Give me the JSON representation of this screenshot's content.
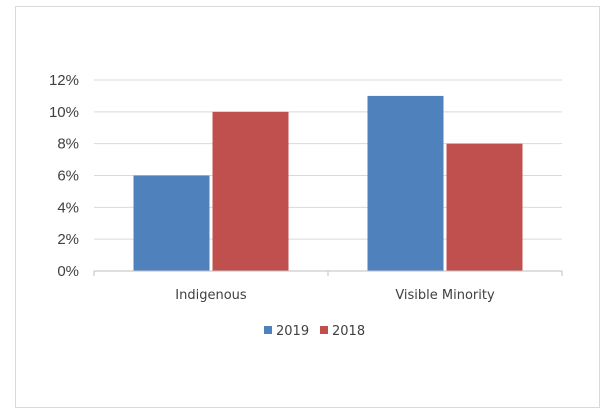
{
  "chart_data": {
    "type": "bar",
    "categories": [
      "Indigenous",
      "Visible Minority"
    ],
    "series": [
      {
        "name": "2019",
        "values": [
          6,
          11
        ],
        "color": "#4f81bd"
      },
      {
        "name": "2018",
        "values": [
          10,
          8
        ],
        "color": "#c0504d"
      }
    ],
    "yticks": [
      "0%",
      "2%",
      "4%",
      "6%",
      "8%",
      "10%",
      "12%"
    ],
    "ylim": [
      0,
      12
    ],
    "grid": true,
    "legend_position": "bottom",
    "title": "",
    "xlabel": "",
    "ylabel": ""
  },
  "colors": {
    "gridline": "#d9d9d9",
    "axis": "#bfbfbf"
  }
}
